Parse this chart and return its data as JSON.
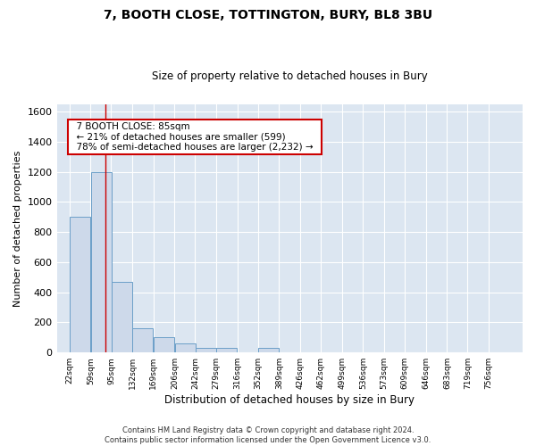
{
  "title": "7, BOOTH CLOSE, TOTTINGTON, BURY, BL8 3BU",
  "subtitle": "Size of property relative to detached houses in Bury",
  "xlabel": "Distribution of detached houses by size in Bury",
  "ylabel": "Number of detached properties",
  "footer_line1": "Contains HM Land Registry data © Crown copyright and database right 2024.",
  "footer_line2": "Contains public sector information licensed under the Open Government Licence v3.0.",
  "bar_color": "#cdd9ea",
  "bar_edge_color": "#6b9fc8",
  "background_color": "#dce6f1",
  "annotation_text": "  7 BOOTH CLOSE: 85sqm  \n  ← 21% of detached houses are smaller (599)  \n  78% of semi-detached houses are larger (2,232) →  ",
  "annotation_box_color": "#ffffff",
  "annotation_border_color": "#cc0000",
  "vline_color": "#cc0000",
  "vline_x": 85,
  "categories": [
    "22sqm",
    "59sqm",
    "95sqm",
    "132sqm",
    "169sqm",
    "206sqm",
    "242sqm",
    "279sqm",
    "316sqm",
    "352sqm",
    "389sqm",
    "426sqm",
    "462sqm",
    "499sqm",
    "536sqm",
    "573sqm",
    "609sqm",
    "646sqm",
    "683sqm",
    "719sqm",
    "756sqm"
  ],
  "bin_edges": [
    22,
    59,
    95,
    132,
    169,
    206,
    242,
    279,
    316,
    352,
    389,
    426,
    462,
    499,
    536,
    573,
    609,
    646,
    683,
    719,
    756
  ],
  "values": [
    900,
    1200,
    470,
    160,
    100,
    60,
    30,
    30,
    0,
    30,
    0,
    0,
    0,
    0,
    0,
    0,
    0,
    0,
    0,
    0
  ],
  "ylim": [
    0,
    1650
  ],
  "yticks": [
    0,
    200,
    400,
    600,
    800,
    1000,
    1200,
    1400,
    1600
  ]
}
